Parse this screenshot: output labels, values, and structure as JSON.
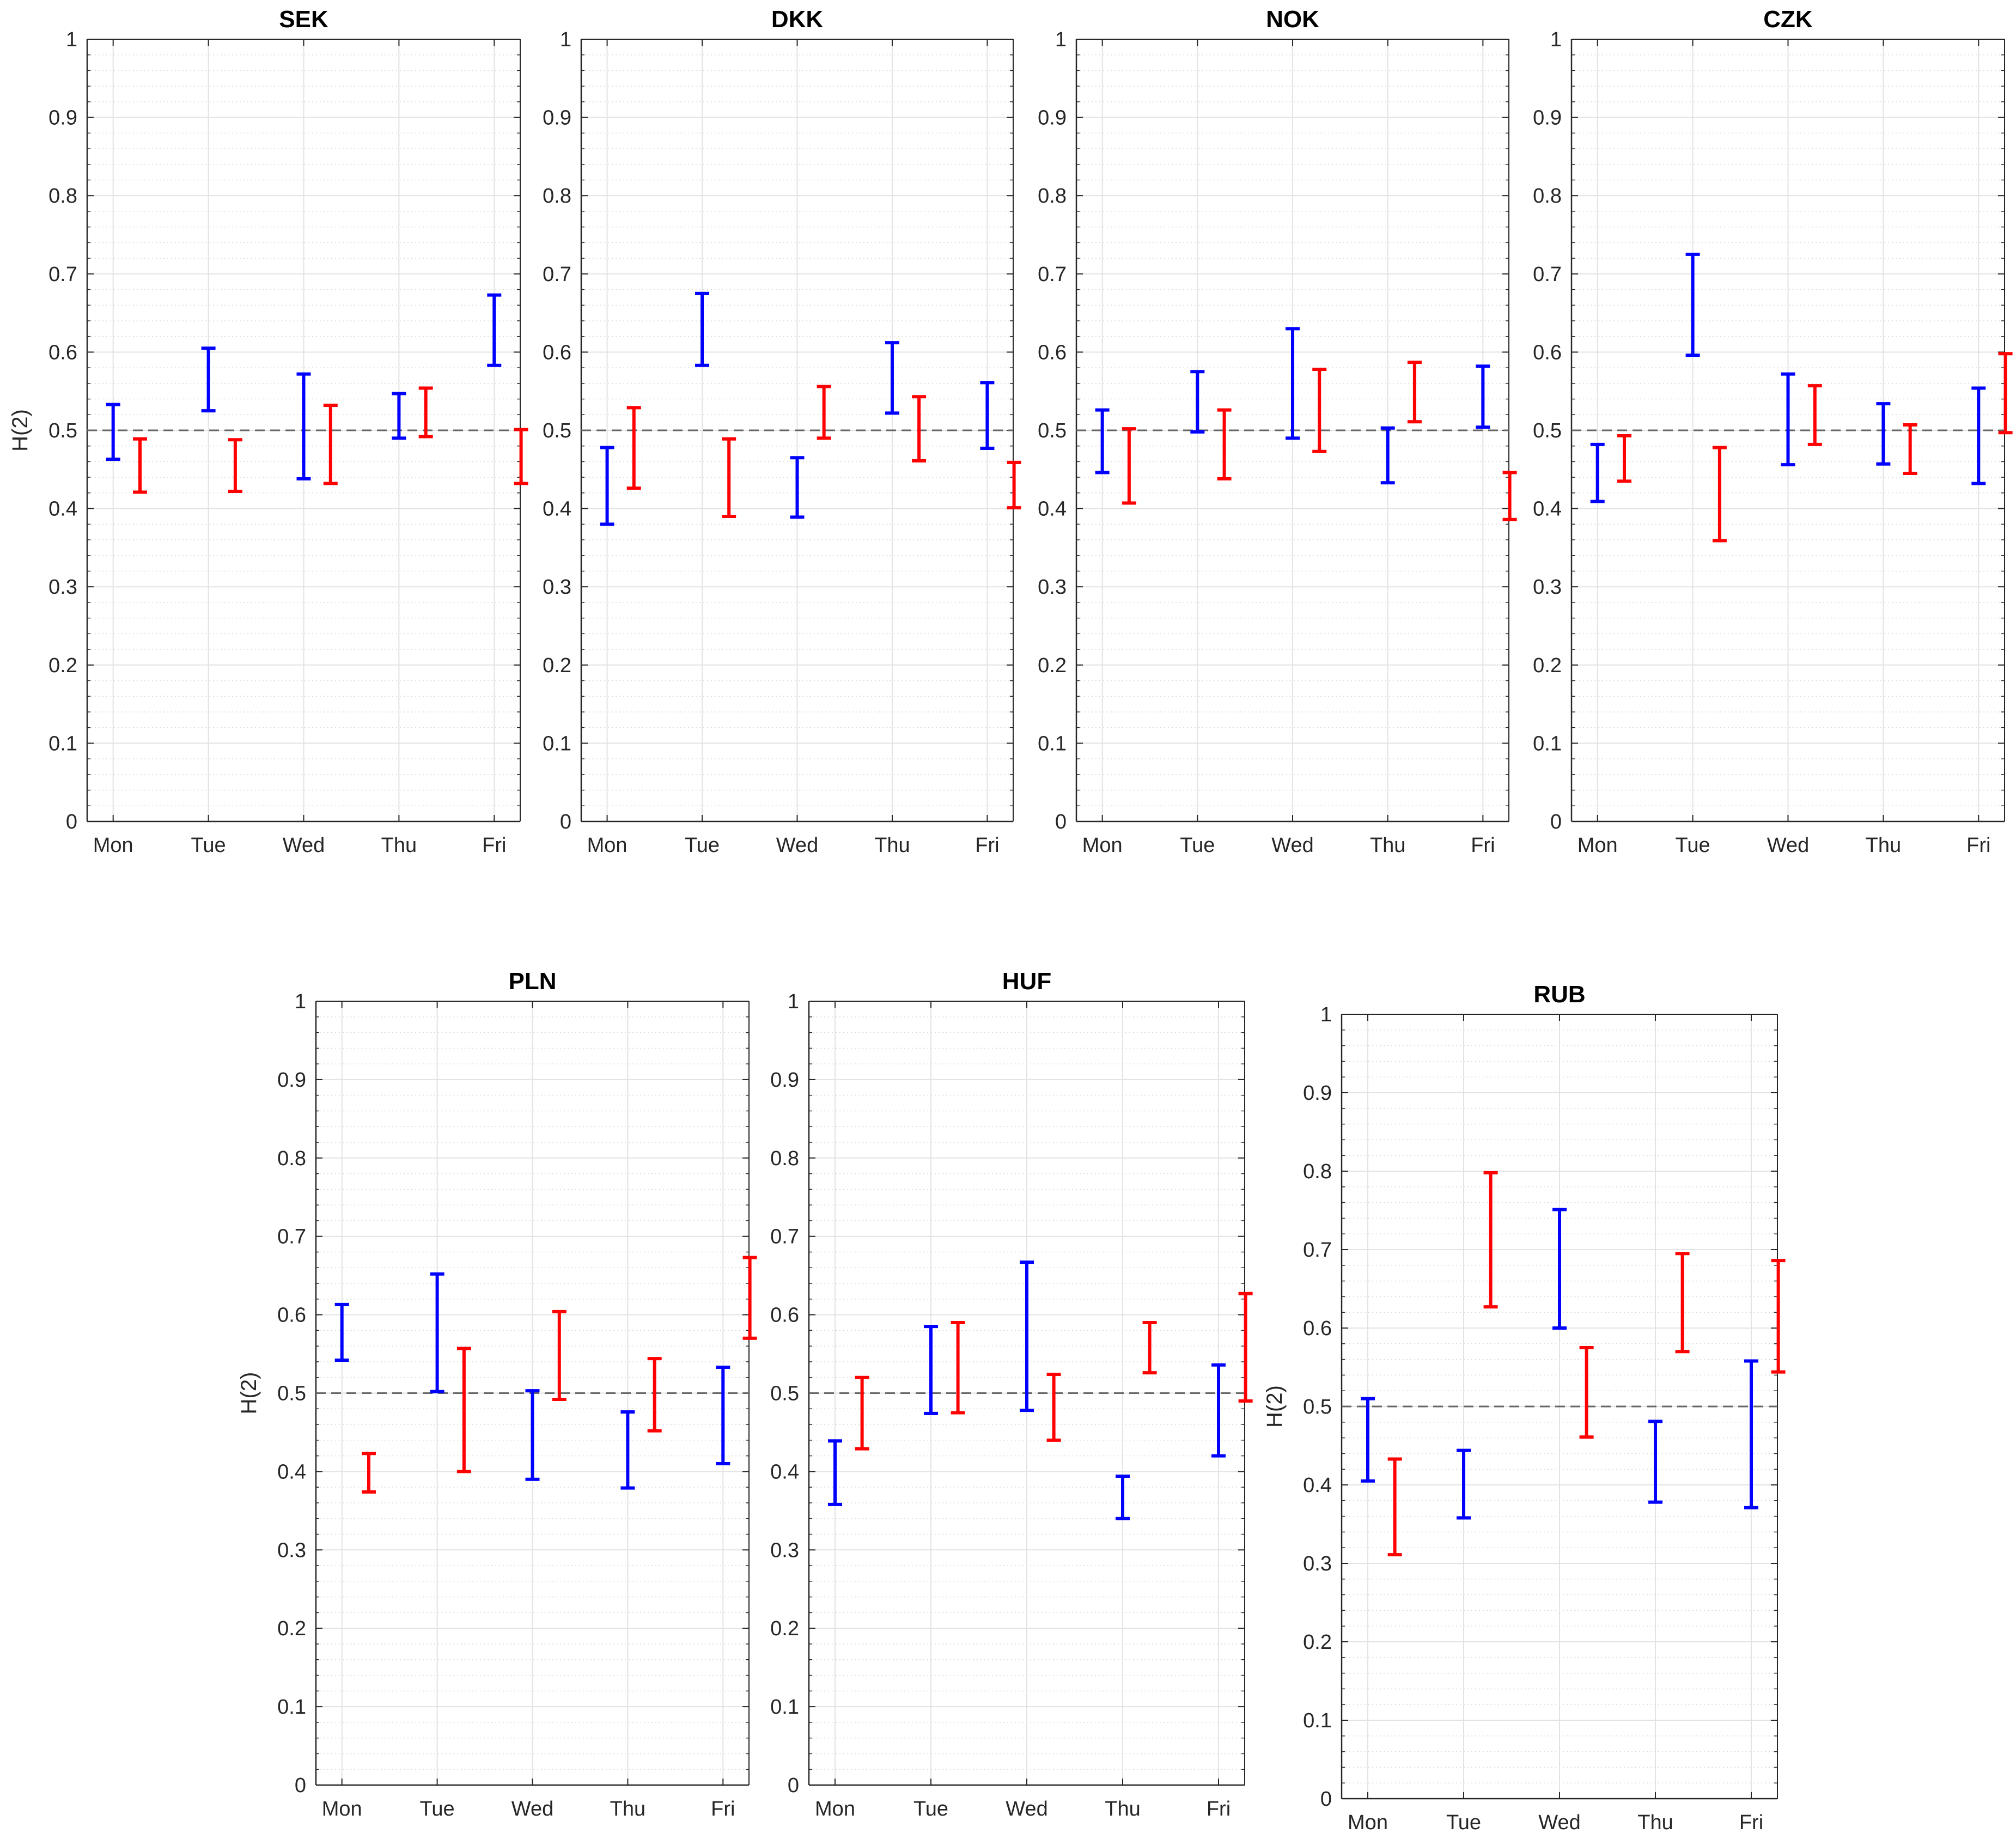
{
  "chart_data": [
    {
      "type": "errorbar",
      "title": "SEK",
      "ylabel": "H(2)",
      "categories": [
        "Mon",
        "Tue",
        "Wed",
        "Thu",
        "Fri"
      ],
      "ylim": [
        0,
        1
      ],
      "yticks": [
        "0",
        "0.1",
        "0.2",
        "0.3",
        "0.4",
        "0.5",
        "0.6",
        "0.7",
        "0.8",
        "0.9",
        "1"
      ],
      "reference_line": 0.5,
      "grid": "on",
      "minor_grid": "on",
      "series": [
        {
          "name": "blue",
          "color": "#0000ff",
          "intervals": [
            [
              0.463,
              0.533
            ],
            [
              0.525,
              0.605
            ],
            [
              0.438,
              0.572
            ],
            [
              0.49,
              0.547
            ],
            [
              0.583,
              0.673
            ]
          ]
        },
        {
          "name": "red",
          "color": "#ff0000",
          "intervals": [
            [
              0.421,
              0.489
            ],
            [
              0.422,
              0.488
            ],
            [
              0.432,
              0.532
            ],
            [
              0.492,
              0.554
            ],
            [
              0.432,
              0.501
            ]
          ]
        }
      ]
    },
    {
      "type": "errorbar",
      "title": "DKK",
      "ylabel": "",
      "categories": [
        "Mon",
        "Tue",
        "Wed",
        "Thu",
        "Fri"
      ],
      "ylim": [
        0,
        1
      ],
      "yticks": [
        "0",
        "0.1",
        "0.2",
        "0.3",
        "0.4",
        "0.5",
        "0.6",
        "0.7",
        "0.8",
        "0.9",
        "1"
      ],
      "reference_line": 0.5,
      "grid": "on",
      "minor_grid": "on",
      "series": [
        {
          "name": "blue",
          "color": "#0000ff",
          "intervals": [
            [
              0.38,
              0.478
            ],
            [
              0.583,
              0.675
            ],
            [
              0.389,
              0.465
            ],
            [
              0.522,
              0.612
            ],
            [
              0.477,
              0.561
            ]
          ]
        },
        {
          "name": "red",
          "color": "#ff0000",
          "intervals": [
            [
              0.426,
              0.529
            ],
            [
              0.39,
              0.489
            ],
            [
              0.49,
              0.556
            ],
            [
              0.461,
              0.543
            ],
            [
              0.401,
              0.459
            ]
          ]
        }
      ]
    },
    {
      "type": "errorbar",
      "title": "NOK",
      "ylabel": "",
      "categories": [
        "Mon",
        "Tue",
        "Wed",
        "Thu",
        "Fri"
      ],
      "ylim": [
        0,
        1
      ],
      "yticks": [
        "0",
        "0.1",
        "0.2",
        "0.3",
        "0.4",
        "0.5",
        "0.6",
        "0.7",
        "0.8",
        "0.9",
        "1"
      ],
      "reference_line": 0.5,
      "grid": "on",
      "minor_grid": "on",
      "series": [
        {
          "name": "blue",
          "color": "#0000ff",
          "intervals": [
            [
              0.446,
              0.526
            ],
            [
              0.498,
              0.575
            ],
            [
              0.49,
              0.63
            ],
            [
              0.433,
              0.503
            ],
            [
              0.504,
              0.582
            ]
          ]
        },
        {
          "name": "red",
          "color": "#ff0000",
          "intervals": [
            [
              0.407,
              0.502
            ],
            [
              0.438,
              0.526
            ],
            [
              0.473,
              0.578
            ],
            [
              0.511,
              0.587
            ],
            [
              0.386,
              0.446
            ]
          ]
        }
      ]
    },
    {
      "type": "errorbar",
      "title": "CZK",
      "ylabel": "",
      "categories": [
        "Mon",
        "Tue",
        "Wed",
        "Thu",
        "Fri"
      ],
      "ylim": [
        0,
        1
      ],
      "yticks": [
        "0",
        "0.1",
        "0.2",
        "0.3",
        "0.4",
        "0.5",
        "0.6",
        "0.7",
        "0.8",
        "0.9",
        "1"
      ],
      "reference_line": 0.5,
      "grid": "on",
      "minor_grid": "on",
      "series": [
        {
          "name": "blue",
          "color": "#0000ff",
          "intervals": [
            [
              0.409,
              0.482
            ],
            [
              0.596,
              0.725
            ],
            [
              0.456,
              0.572
            ],
            [
              0.457,
              0.534
            ],
            [
              0.432,
              0.554
            ]
          ]
        },
        {
          "name": "red",
          "color": "#ff0000",
          "intervals": [
            [
              0.435,
              0.493
            ],
            [
              0.359,
              0.478
            ],
            [
              0.482,
              0.557
            ],
            [
              0.445,
              0.507
            ],
            [
              0.497,
              0.598
            ]
          ]
        }
      ]
    },
    {
      "type": "errorbar",
      "title": "PLN",
      "ylabel": "H(2)",
      "categories": [
        "Mon",
        "Tue",
        "Wed",
        "Thu",
        "Fri"
      ],
      "ylim": [
        0,
        1
      ],
      "yticks": [
        "0",
        "0.1",
        "0.2",
        "0.3",
        "0.4",
        "0.5",
        "0.6",
        "0.7",
        "0.8",
        "0.9",
        "1"
      ],
      "reference_line": 0.5,
      "grid": "on",
      "minor_grid": "on",
      "series": [
        {
          "name": "blue",
          "color": "#0000ff",
          "intervals": [
            [
              0.542,
              0.613
            ],
            [
              0.502,
              0.652
            ],
            [
              0.39,
              0.503
            ],
            [
              0.379,
              0.476
            ],
            [
              0.41,
              0.533
            ]
          ]
        },
        {
          "name": "red",
          "color": "#ff0000",
          "intervals": [
            [
              0.374,
              0.423
            ],
            [
              0.4,
              0.557
            ],
            [
              0.492,
              0.604
            ],
            [
              0.452,
              0.544
            ],
            [
              0.57,
              0.673
            ]
          ]
        }
      ]
    },
    {
      "type": "errorbar",
      "title": "HUF",
      "ylabel": "",
      "categories": [
        "Mon",
        "Tue",
        "Wed",
        "Thu",
        "Fri"
      ],
      "ylim": [
        0,
        1
      ],
      "yticks": [
        "0",
        "0.1",
        "0.2",
        "0.3",
        "0.4",
        "0.5",
        "0.6",
        "0.7",
        "0.8",
        "0.9",
        "1"
      ],
      "reference_line": 0.5,
      "grid": "on",
      "minor_grid": "on",
      "series": [
        {
          "name": "blue",
          "color": "#0000ff",
          "intervals": [
            [
              0.358,
              0.439
            ],
            [
              0.474,
              0.585
            ],
            [
              0.478,
              0.667
            ],
            [
              0.34,
              0.394
            ],
            [
              0.42,
              0.536
            ]
          ]
        },
        {
          "name": "red",
          "color": "#ff0000",
          "intervals": [
            [
              0.429,
              0.52
            ],
            [
              0.475,
              0.59
            ],
            [
              0.44,
              0.524
            ],
            [
              0.526,
              0.59
            ],
            [
              0.49,
              0.627
            ]
          ]
        }
      ]
    },
    {
      "type": "errorbar",
      "title": "RUB",
      "ylabel": "H(2)",
      "categories": [
        "Mon",
        "Tue",
        "Wed",
        "Thu",
        "Fri"
      ],
      "ylim": [
        0,
        1
      ],
      "yticks": [
        "0",
        "0.1",
        "0.2",
        "0.3",
        "0.4",
        "0.5",
        "0.6",
        "0.7",
        "0.8",
        "0.9",
        "1"
      ],
      "reference_line": 0.5,
      "grid": "on",
      "minor_grid": "on",
      "series": [
        {
          "name": "blue",
          "color": "#0000ff",
          "intervals": [
            [
              0.405,
              0.51
            ],
            [
              0.358,
              0.444
            ],
            [
              0.6,
              0.751
            ],
            [
              0.378,
              0.481
            ],
            [
              0.371,
              0.558
            ]
          ]
        },
        {
          "name": "red",
          "color": "#ff0000",
          "intervals": [
            [
              0.311,
              0.433
            ],
            [
              0.627,
              0.798
            ],
            [
              0.461,
              0.575
            ],
            [
              0.57,
              0.695
            ],
            [
              0.544,
              0.686
            ]
          ]
        }
      ]
    }
  ]
}
